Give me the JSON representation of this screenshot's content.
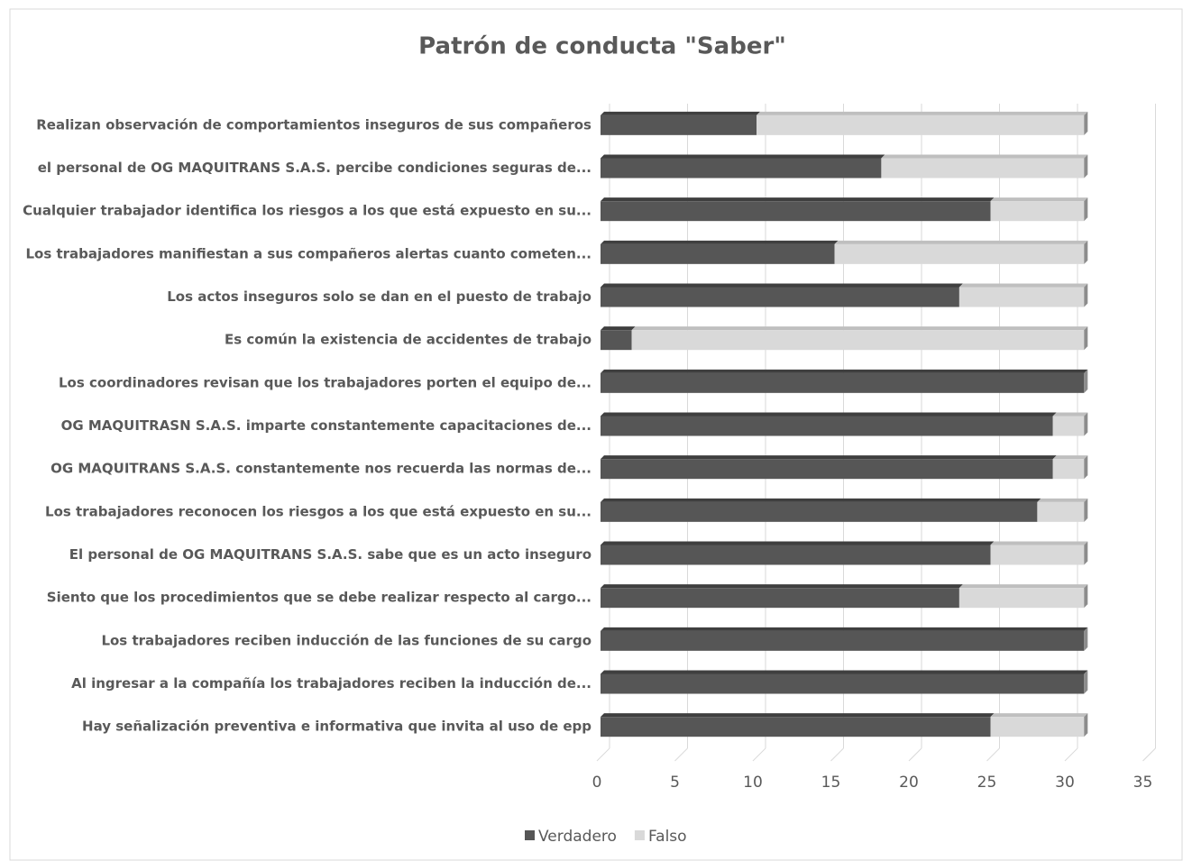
{
  "chart_data": {
    "type": "stacked_bar_horizontal",
    "title": "Patrón de conducta \"Saber\"",
    "categories": [
      "Realizan observación de comportamientos inseguros de sus compañeros",
      "el personal de OG MAQUITRANS S.A.S. percibe condiciones seguras de...",
      "Cualquier trabajador identifica los riesgos a los que está expuesto en su...",
      "Los trabajadores manifiestan a sus compañeros alertas cuanto cometen...",
      "Los actos inseguros solo se dan en el puesto de trabajo",
      "Es común la existencia de accidentes de trabajo",
      "Los coordinadores revisan que los trabajadores porten el equipo de...",
      "OG MAQUITRASN S.A.S. imparte constantemente capacitaciones de...",
      "OG MAQUITRANS S.A.S. constantemente nos recuerda las normas de...",
      "Los trabajadores reconocen los riesgos a los que está expuesto en su...",
      "El personal de OG MAQUITRANS S.A.S. sabe que es un acto inseguro",
      "Siento que los procedimientos que se debe realizar respecto al cargo...",
      "Los trabajadores reciben inducción de las funciones de su cargo",
      "Al ingresar a la compañía los trabajadores reciben la inducción de...",
      "Hay señalización preventiva e informativa que invita al uso de epp"
    ],
    "series": [
      {
        "name": "Verdadero",
        "color": "#565656",
        "values": [
          10,
          18,
          25,
          15,
          23,
          2,
          31,
          29,
          29,
          28,
          25,
          23,
          31,
          31,
          25
        ]
      },
      {
        "name": "Falso",
        "color": "#d9d9d9",
        "values": [
          21,
          13,
          6,
          16,
          8,
          29,
          0,
          2,
          2,
          3,
          6,
          8,
          0,
          0,
          6
        ]
      }
    ],
    "xlim": [
      0,
      35
    ],
    "xticks": [
      0,
      5,
      10,
      15,
      20,
      25,
      30,
      35
    ],
    "grid": true,
    "legend": "bottom"
  }
}
